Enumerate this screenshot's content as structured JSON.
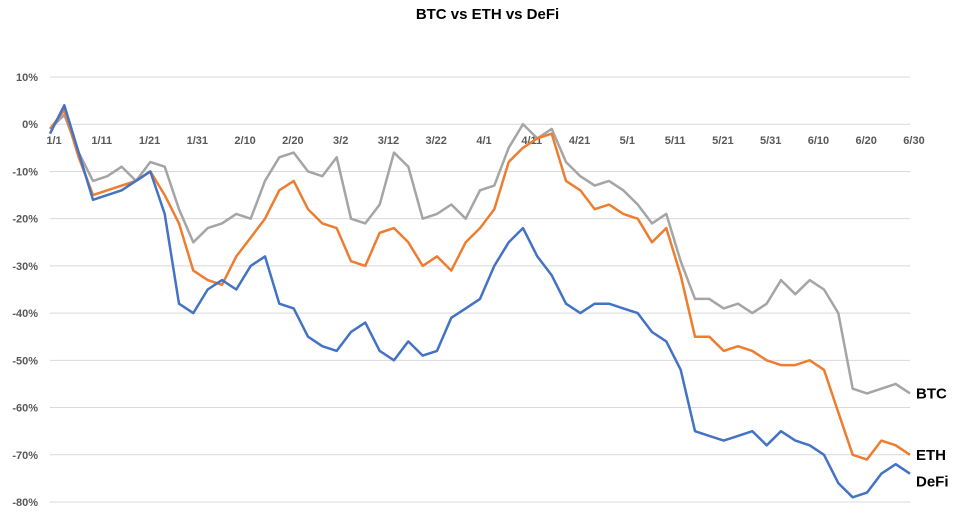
{
  "chart_data": {
    "type": "line",
    "title": "BTC vs ETH vs DeFi",
    "xlabel": "",
    "ylabel": "",
    "ylim": [
      -80,
      10
    ],
    "y_ticks": [
      "10%",
      "0%",
      "-10%",
      "-20%",
      "-30%",
      "-40%",
      "-50%",
      "-60%",
      "-70%",
      "-80%"
    ],
    "x_ticks": [
      "1/1",
      "1/11",
      "1/21",
      "1/31",
      "2/10",
      "2/20",
      "3/2",
      "3/12",
      "3/22",
      "4/1",
      "4/11",
      "4/21",
      "5/1",
      "5/11",
      "5/21",
      "5/31",
      "6/10",
      "6/20",
      "6/30"
    ],
    "grid": true,
    "legend": "end-of-line labels",
    "x": [
      1,
      4,
      7,
      10,
      13,
      16,
      19,
      22,
      25,
      28,
      31,
      34,
      37,
      40,
      43,
      46,
      49,
      52,
      55,
      58,
      61,
      64,
      67,
      70,
      73,
      76,
      79,
      82,
      85,
      88,
      91,
      94,
      97,
      100,
      103,
      106,
      109,
      112,
      115,
      118,
      121,
      124,
      127,
      130,
      133,
      136,
      139,
      142,
      145,
      148,
      151,
      154,
      157,
      160,
      163,
      166,
      169,
      172,
      175,
      178,
      181
    ],
    "series": [
      {
        "name": "BTC",
        "color": "#a5a5a5",
        "values": [
          -1,
          2,
          -6,
          -12,
          -11,
          -9,
          -12,
          -8,
          -9,
          -18,
          -25,
          -22,
          -21,
          -19,
          -20,
          -12,
          -7,
          -6,
          -10,
          -11,
          -7,
          -20,
          -21,
          -17,
          -6,
          -9,
          -20,
          -19,
          -17,
          -20,
          -14,
          -13,
          -5,
          0,
          -3,
          -1,
          -8,
          -11,
          -13,
          -12,
          -14,
          -17,
          -21,
          -19,
          -29,
          -37,
          -37,
          -39,
          -38,
          -40,
          -38,
          -33,
          -36,
          -33,
          -35,
          -40,
          -56,
          -57,
          -56,
          -55,
          -57
        ]
      },
      {
        "name": "ETH",
        "color": "#ed7d31",
        "values": [
          -1,
          3,
          -7,
          -15,
          -14,
          -13,
          -12,
          -10,
          -15,
          -21,
          -31,
          -33,
          -34,
          -28,
          -24,
          -20,
          -14,
          -12,
          -18,
          -21,
          -22,
          -29,
          -30,
          -23,
          -22,
          -25,
          -30,
          -28,
          -31,
          -25,
          -22,
          -18,
          -8,
          -5,
          -3,
          -2,
          -12,
          -14,
          -18,
          -17,
          -19,
          -20,
          -25,
          -22,
          -32,
          -45,
          -45,
          -48,
          -47,
          -48,
          -50,
          -51,
          -51,
          -50,
          -52,
          -61,
          -70,
          -71,
          -67,
          -68,
          -70
        ]
      },
      {
        "name": "DeFi",
        "color": "#4472c4",
        "values": [
          -2,
          4,
          -6,
          -16,
          -15,
          -14,
          -12,
          -10,
          -19,
          -38,
          -40,
          -35,
          -33,
          -35,
          -30,
          -28,
          -38,
          -39,
          -45,
          -47,
          -48,
          -44,
          -42,
          -48,
          -50,
          -46,
          -49,
          -48,
          -41,
          -39,
          -37,
          -30,
          -25,
          -22,
          -28,
          -32,
          -38,
          -40,
          -38,
          -38,
          -39,
          -40,
          -44,
          -46,
          -52,
          -65,
          -66,
          -67,
          -66,
          -65,
          -68,
          -65,
          -67,
          -68,
          -70,
          -76,
          -79,
          -78,
          -74,
          -72,
          -74
        ]
      }
    ]
  }
}
